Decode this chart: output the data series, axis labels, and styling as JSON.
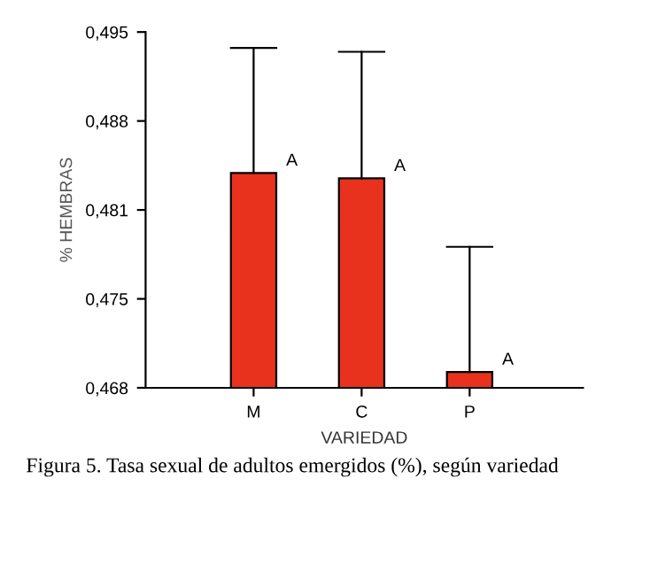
{
  "chart_data": {
    "type": "bar",
    "xlabel": "VARIEDAD",
    "ylabel": "% HEMBRAS",
    "categories": [
      "M",
      "C",
      "P"
    ],
    "values": [
      0.4843,
      0.4839,
      0.4692
    ],
    "errors": [
      [
        0.4843,
        0.4938
      ],
      [
        0.4839,
        0.4935
      ],
      [
        0.4692,
        0.4787
      ]
    ],
    "color": "#e8321e",
    "ylim": [
      0.468,
      0.495
    ],
    "yticks": [
      {
        "value": 0.468,
        "label": "0,468"
      },
      {
        "value": 0.47475,
        "label": "0,475"
      },
      {
        "value": 0.4815,
        "label": "0,481"
      },
      {
        "value": 0.48825,
        "label": "0,488"
      },
      {
        "value": 0.495,
        "label": "0,495"
      }
    ],
    "grid": false,
    "legend": false,
    "annotations": [
      {
        "text": "A",
        "x": "M",
        "y": 0.4843
      },
      {
        "text": "A",
        "x": "C",
        "y": 0.4839
      },
      {
        "text": "A",
        "x": "P",
        "y": 0.4692
      },
      "Figura 5. Tasa sexual de adultos emergidos (%), según variedad"
    ]
  }
}
